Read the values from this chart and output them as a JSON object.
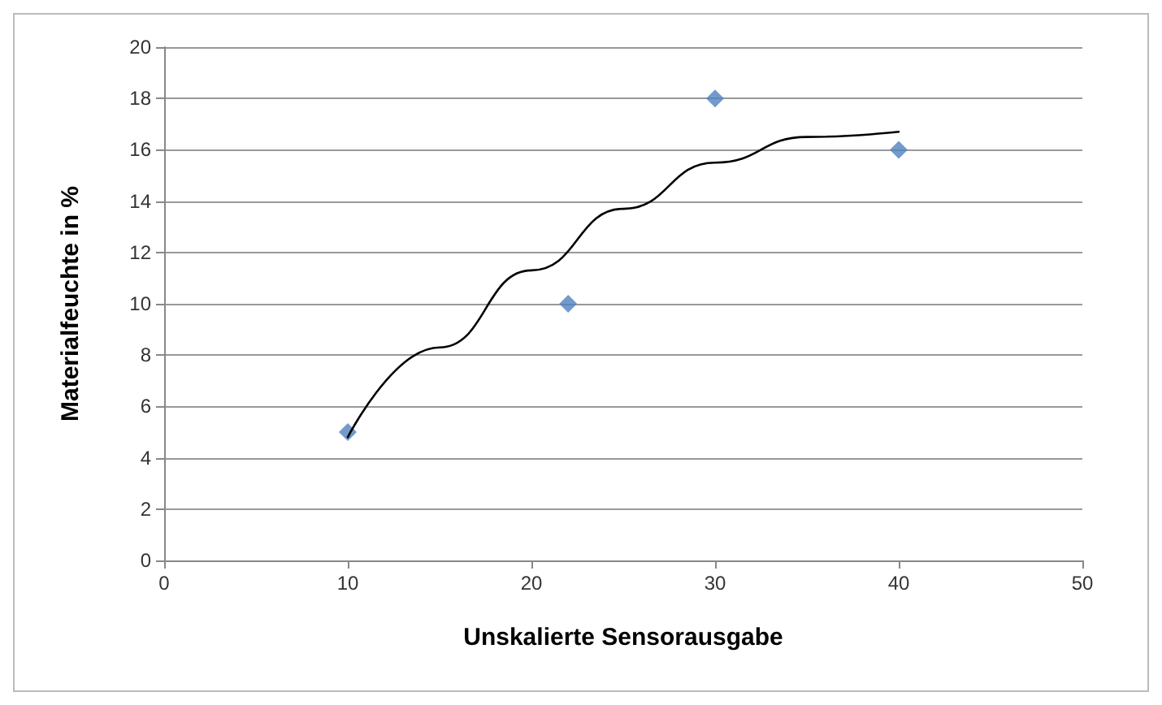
{
  "chart_data": {
    "type": "scatter",
    "xlabel": "Unskalierte Sensorausgabe",
    "ylabel": "Materialfeuchte in %",
    "xlim": [
      0,
      50
    ],
    "xticks": [
      0,
      10,
      20,
      30,
      40,
      50
    ],
    "ylim": [
      0,
      20
    ],
    "yticks": [
      0,
      2,
      4,
      6,
      8,
      10,
      12,
      14,
      16,
      18,
      20
    ],
    "grid": "y",
    "marker": "diamond",
    "series": [
      {
        "color": "#4f81bd",
        "x": [
          10,
          22,
          30,
          40
        ],
        "values": [
          5,
          10,
          18,
          16
        ]
      },
      {
        "type": "line",
        "color": "#000000",
        "marker": "none",
        "x": [
          10,
          15,
          20,
          25,
          30,
          35,
          40
        ],
        "values": [
          4.8,
          8.3,
          11.3,
          13.7,
          15.5,
          16.5,
          16.7
        ]
      }
    ]
  }
}
